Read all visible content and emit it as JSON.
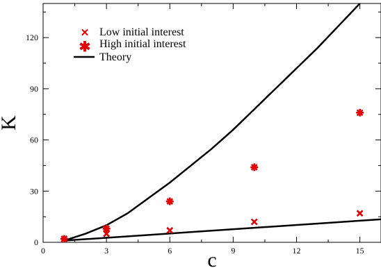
{
  "chart_data": {
    "type": "scatter",
    "title": "",
    "xlabel": "c",
    "ylabel": "K",
    "xlim": [
      0,
      16
    ],
    "ylim": [
      0,
      140
    ],
    "xticks": [
      0,
      3,
      6,
      9,
      12,
      15
    ],
    "yticks": [
      0,
      30,
      60,
      90,
      120
    ],
    "grid": false,
    "legend_position": "top-left",
    "series": [
      {
        "name": "Low initial interest",
        "kind": "points",
        "marker": "x",
        "color": "#e00000",
        "x": [
          1,
          3,
          3,
          6,
          10,
          15
        ],
        "y": [
          2,
          5,
          8,
          7,
          12,
          17
        ]
      },
      {
        "name": "High initial interest",
        "kind": "points",
        "marker": "asterisk",
        "color": "#e00000",
        "x": [
          1,
          3,
          6,
          10,
          15
        ],
        "y": [
          2,
          8,
          24,
          44,
          76
        ]
      },
      {
        "name": "Theory",
        "kind": "line",
        "color": "#000000",
        "x": [
          1,
          2,
          3,
          4,
          5,
          6,
          7,
          8,
          9,
          10,
          11,
          12,
          13,
          14,
          15
        ],
        "y": [
          1,
          5,
          10,
          17,
          26,
          35,
          45,
          55,
          66,
          78,
          90,
          102,
          114,
          127,
          140
        ]
      },
      {
        "kind": "line",
        "color": "#000000",
        "x": [
          1,
          16
        ],
        "y": [
          1,
          13.5
        ]
      }
    ]
  }
}
